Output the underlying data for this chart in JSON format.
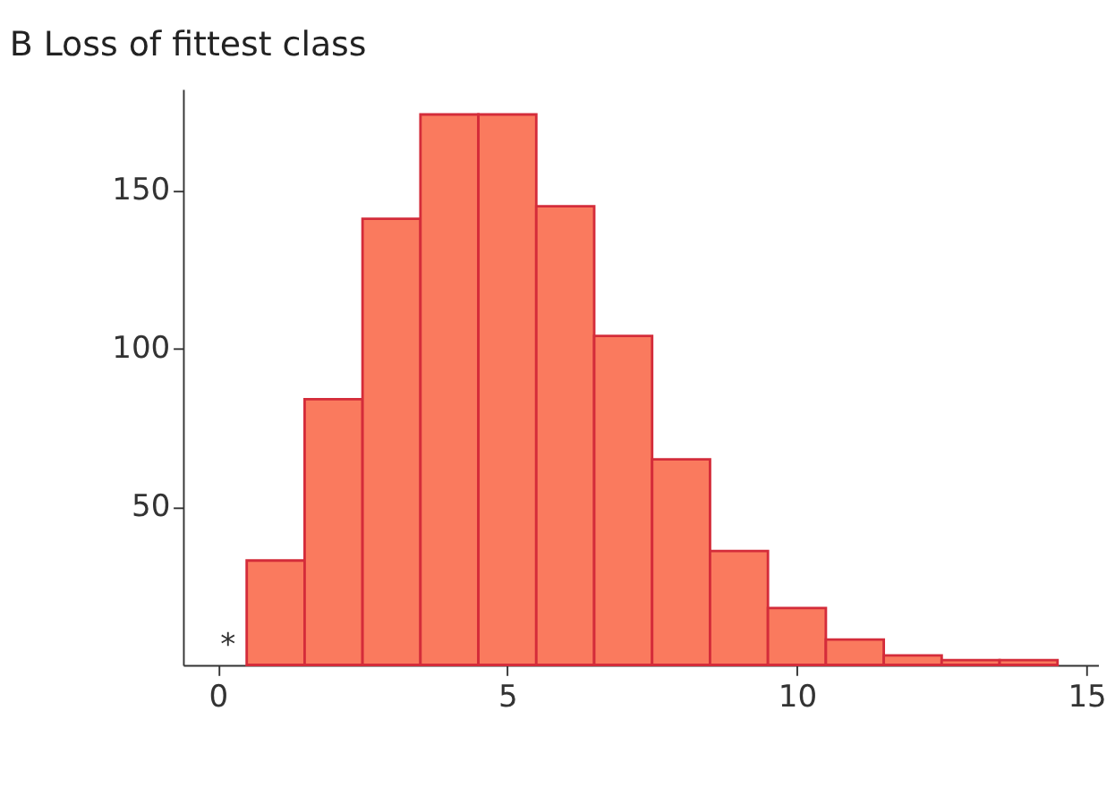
{
  "chart_data": {
    "type": "histogram",
    "title": "B  Loss of fittest class",
    "bins": [
      0.5,
      1.5,
      2.5,
      3.5,
      4.5,
      5.5,
      6.5,
      7.5,
      8.5,
      9.5,
      10.5,
      11.5,
      12.5,
      13.5,
      14.5
    ],
    "values": [
      33,
      84,
      141,
      174,
      174,
      145,
      104,
      65,
      36,
      18,
      8,
      3,
      1.5,
      1.5
    ],
    "color": "#fa7a5e",
    "xlim": [
      -0.6,
      15.2
    ],
    "xticks": [
      0,
      5,
      10,
      15
    ],
    "ylim": [
      0,
      182
    ],
    "yticks": [
      50,
      100,
      150
    ],
    "annotations": [
      "*"
    ],
    "grid": false
  }
}
